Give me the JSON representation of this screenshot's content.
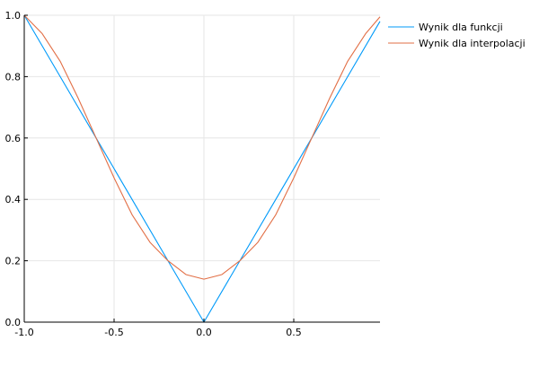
{
  "chart_data": {
    "type": "line",
    "title": "",
    "xlabel": "",
    "ylabel": "",
    "xlim": [
      -1.0,
      0.98
    ],
    "ylim": [
      0.0,
      1.0
    ],
    "xticks": [
      -1.0,
      -0.5,
      0.0,
      0.5
    ],
    "xtick_labels": [
      "-1.0",
      "-0.5",
      "0.0",
      "0.5"
    ],
    "yticks": [
      0.0,
      0.2,
      0.4,
      0.6,
      0.8,
      1.0
    ],
    "ytick_labels": [
      "0.0",
      "0.2",
      "0.4",
      "0.6",
      "0.8",
      "1.0"
    ],
    "grid": true,
    "legend_position": "top-right outside",
    "series": [
      {
        "name": "Wynik dla funkcji",
        "color": "#009af9",
        "x": [
          -1.0,
          -0.8,
          -0.6,
          -0.4,
          -0.2,
          0.0,
          0.2,
          0.4,
          0.6,
          0.8,
          0.98
        ],
        "y": [
          1.0,
          0.8,
          0.6,
          0.4,
          0.2,
          0.0,
          0.2,
          0.4,
          0.6,
          0.8,
          0.98
        ]
      },
      {
        "name": "Wynik dla interpolacji",
        "color": "#e26f46",
        "x": [
          -1.0,
          -0.9,
          -0.8,
          -0.7,
          -0.6,
          -0.5,
          -0.4,
          -0.3,
          -0.2,
          -0.1,
          0.0,
          0.1,
          0.2,
          0.3,
          0.4,
          0.5,
          0.6,
          0.7,
          0.8,
          0.9,
          0.98
        ],
        "y": [
          1.0,
          0.94,
          0.85,
          0.73,
          0.6,
          0.47,
          0.35,
          0.26,
          0.2,
          0.155,
          0.14,
          0.155,
          0.2,
          0.26,
          0.35,
          0.47,
          0.6,
          0.73,
          0.85,
          0.94,
          0.995
        ]
      }
    ]
  }
}
